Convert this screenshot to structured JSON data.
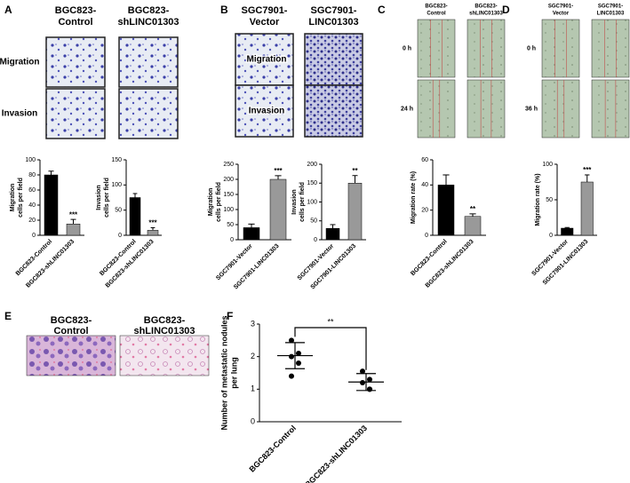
{
  "panel_labels": [
    "A",
    "B",
    "C",
    "D",
    "E",
    "F"
  ],
  "image_panels": [
    {
      "columns": [
        [
          "BGC823-",
          "Control"
        ],
        [
          "BGC823-",
          "shLINC01303"
        ]
      ],
      "rows": [
        "Migration",
        "Invasion"
      ]
    },
    {
      "columns": [
        [
          "SGC7901-",
          "Vector"
        ],
        [
          "SGC7901-",
          "LINC01303"
        ]
      ],
      "rows": [
        "Migration",
        "Invasion"
      ]
    },
    {
      "columns": [
        [
          "BGC823-",
          "Control"
        ],
        [
          "BGC823-",
          "shLINC01303"
        ]
      ],
      "rows": [
        "0 h",
        "24 h"
      ]
    },
    {
      "columns": [
        [
          "SGC7901-",
          "Vector"
        ],
        [
          "SGC7901-",
          "LINC01303"
        ]
      ],
      "rows": [
        "0 h",
        "36 h"
      ]
    },
    {
      "columns": [
        [
          "BGC823-",
          "Control"
        ],
        [
          "BGC823-",
          "shLINC01303"
        ]
      ],
      "rows": []
    }
  ],
  "chart_data": [
    {
      "type": "bar",
      "categories": [
        "BGC823-Control",
        "BGC823-shLINC01303"
      ],
      "values": [
        80,
        15
      ],
      "errors": [
        5,
        6
      ],
      "colors": [
        "#000000",
        "#999999"
      ],
      "significance": [
        null,
        "***"
      ],
      "ylabel": [
        "Migration",
        "cells per field"
      ],
      "ylim": [
        0,
        100
      ],
      "yticks": [
        0,
        20,
        40,
        60,
        80,
        100
      ]
    },
    {
      "type": "bar",
      "categories": [
        "BGC823-Control",
        "BGC823-shLINC01303"
      ],
      "values": [
        75,
        10
      ],
      "errors": [
        8,
        5
      ],
      "colors": [
        "#000000",
        "#999999"
      ],
      "significance": [
        null,
        "***"
      ],
      "ylabel": [
        "Invasion",
        "cells per field"
      ],
      "ylim": [
        0,
        150
      ],
      "yticks": [
        0,
        50,
        100,
        150
      ]
    },
    {
      "type": "bar",
      "categories": [
        "SGC7901-Vector",
        "SGC7901-LINC01303"
      ],
      "values": [
        40,
        200
      ],
      "errors": [
        12,
        12
      ],
      "colors": [
        "#000000",
        "#999999"
      ],
      "significance": [
        null,
        "***"
      ],
      "ylabel": [
        "Migration",
        "cells per field"
      ],
      "ylim": [
        0,
        250
      ],
      "yticks": [
        0,
        50,
        100,
        150,
        200,
        250
      ]
    },
    {
      "type": "bar",
      "categories": [
        "SGC7901-Vector",
        "SGC7901-LINC01303"
      ],
      "values": [
        30,
        150
      ],
      "errors": [
        10,
        20
      ],
      "colors": [
        "#000000",
        "#999999"
      ],
      "significance": [
        null,
        "**"
      ],
      "ylabel": [
        "Invasion",
        "cells per field"
      ],
      "ylim": [
        0,
        200
      ],
      "yticks": [
        0,
        50,
        100,
        150,
        200
      ]
    },
    {
      "type": "bar",
      "categories": [
        "BGC823-Control",
        "BGC823-shLINC01303"
      ],
      "values": [
        40,
        15
      ],
      "errors": [
        8,
        2
      ],
      "colors": [
        "#000000",
        "#999999"
      ],
      "significance": [
        null,
        "**"
      ],
      "ylabel": [
        "Migration rate (%)"
      ],
      "ylim": [
        0,
        60
      ],
      "yticks": [
        0,
        20,
        40,
        60
      ]
    },
    {
      "type": "bar",
      "categories": [
        "SGC7901-Vector",
        "SGC7901-LINC01303"
      ],
      "values": [
        10,
        75
      ],
      "errors": [
        1,
        10
      ],
      "colors": [
        "#000000",
        "#999999"
      ],
      "significance": [
        null,
        "***"
      ],
      "ylabel": [
        "Migration rate (%)"
      ],
      "ylim": [
        0,
        100
      ],
      "yticks": [
        0,
        50,
        100
      ]
    },
    {
      "type": "dotplot",
      "categories": [
        "BGC823-Control",
        "BGC823-shLINC01303"
      ],
      "groups": [
        {
          "values": [
            2.5,
            2.1,
            2.0,
            1.8,
            1.4
          ],
          "mean": 2.03,
          "sd": 0.4
        },
        {
          "values": [
            1.55,
            1.3,
            1.2,
            1.0,
            1.0
          ],
          "mean": 1.22,
          "sd": 0.26
        }
      ],
      "color": "#000000",
      "significance": "**",
      "ylabel": [
        "Number of metastatic nodules",
        "per lung"
      ],
      "ylim": [
        0,
        3
      ],
      "yticks": [
        0,
        1,
        2,
        3
      ]
    }
  ]
}
